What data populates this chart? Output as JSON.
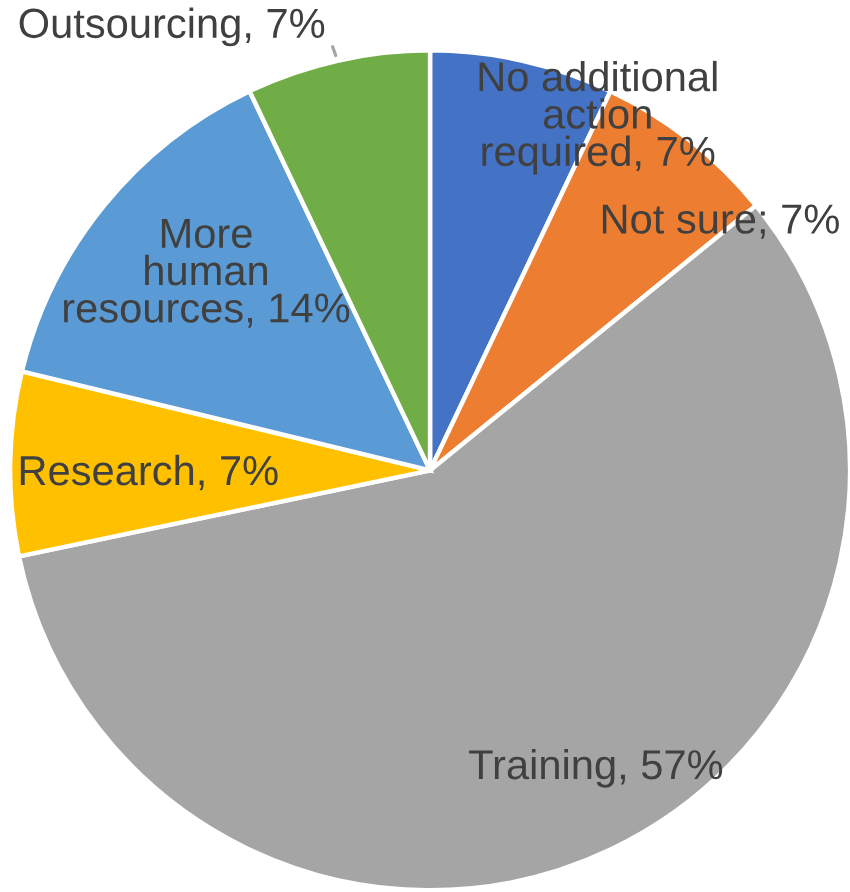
{
  "chart_data": {
    "type": "pie",
    "categories": [
      "No additional\naction\nrequired",
      "Not sure",
      "Training",
      "Research",
      "More\nhuman\nresources",
      "Outsourcing"
    ],
    "values": [
      7,
      7,
      57,
      7,
      14,
      7
    ],
    "colors": [
      "#4472c4",
      "#ed7d31",
      "#a5a5a5",
      "#ffc000",
      "#5b9bd5",
      "#70ad47"
    ],
    "value_labels": [
      "7%",
      "7%",
      "57%",
      "7%",
      "14%",
      "7%"
    ]
  }
}
